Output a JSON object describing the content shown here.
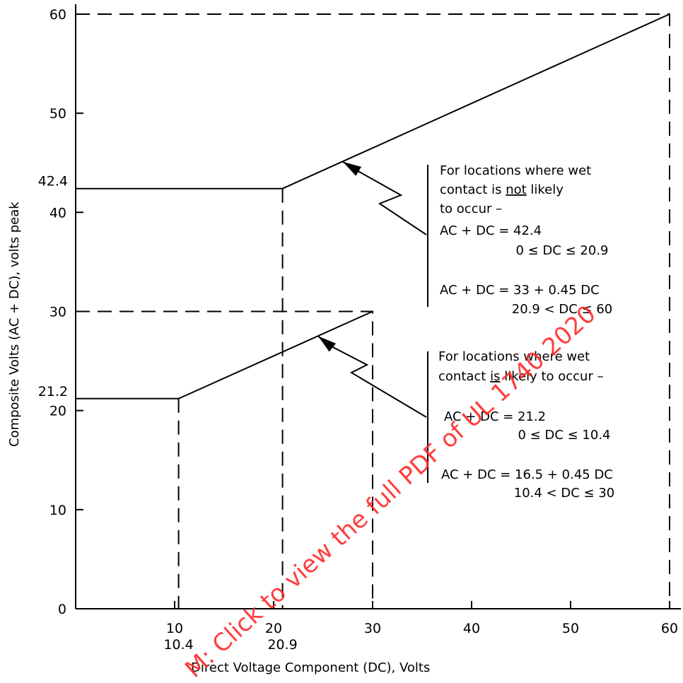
{
  "chart_data": {
    "type": "line",
    "xlabel": "Direct Voltage Component (DC), Volts",
    "ylabel": "Composite Volts (AC + DC), volts peak",
    "xlim": [
      0,
      60
    ],
    "ylim": [
      0,
      60
    ],
    "x_ticks": [
      10,
      20,
      30,
      40,
      50,
      60
    ],
    "y_ticks": [
      0,
      10,
      20,
      30,
      40,
      50,
      60
    ],
    "x_extra_ticks": [
      10.4,
      20.9
    ],
    "y_extra_ticks": [
      21.2,
      42.4
    ],
    "grid": false,
    "series": [
      {
        "points": [
          [
            0,
            42.4
          ],
          [
            20.9,
            42.4
          ],
          [
            60,
            60
          ]
        ]
      },
      {
        "points": [
          [
            0,
            21.2
          ],
          [
            10.4,
            21.2
          ],
          [
            30,
            30
          ]
        ]
      }
    ],
    "guides": [
      {
        "points": [
          [
            0,
            60
          ],
          [
            60,
            60
          ],
          [
            60,
            0
          ]
        ]
      },
      {
        "points": [
          [
            0,
            30
          ],
          [
            30,
            30
          ],
          [
            30,
            0
          ]
        ]
      },
      {
        "points": [
          [
            20.9,
            42.4
          ],
          [
            20.9,
            0
          ]
        ]
      },
      {
        "points": [
          [
            10.4,
            21.2
          ],
          [
            10.4,
            0
          ]
        ]
      }
    ],
    "annotations": [
      {
        "id": "dry",
        "lines": [
          [
            "For locations where wet"
          ],
          [
            "contact is ",
            "not",
            " likely"
          ],
          [
            "to occur –"
          ],
          [
            "AC + DC = 42.4"
          ],
          [
            "0 ≤ DC ≤ 20.9"
          ],
          [
            "AC + DC = 33 + 0.45 DC"
          ],
          [
            "20.9 < DC ≤ 60"
          ]
        ],
        "arrow_target": [
          27,
          45.1
        ]
      },
      {
        "id": "wet",
        "lines": [
          [
            "For locations where wet"
          ],
          [
            "contact ",
            "is",
            " likely to occur –"
          ],
          [
            "AC + DC = 21.2"
          ],
          [
            "0 ≤ DC ≤ 10.4"
          ],
          [
            "AC + DC = 16.5 + 0.45 DC"
          ],
          [
            "10.4 < DC ≤ 30"
          ]
        ],
        "arrow_target": [
          24.5,
          27.5
        ]
      }
    ]
  },
  "watermark": "M: Click to view the full PDF of UL 1740 2020"
}
